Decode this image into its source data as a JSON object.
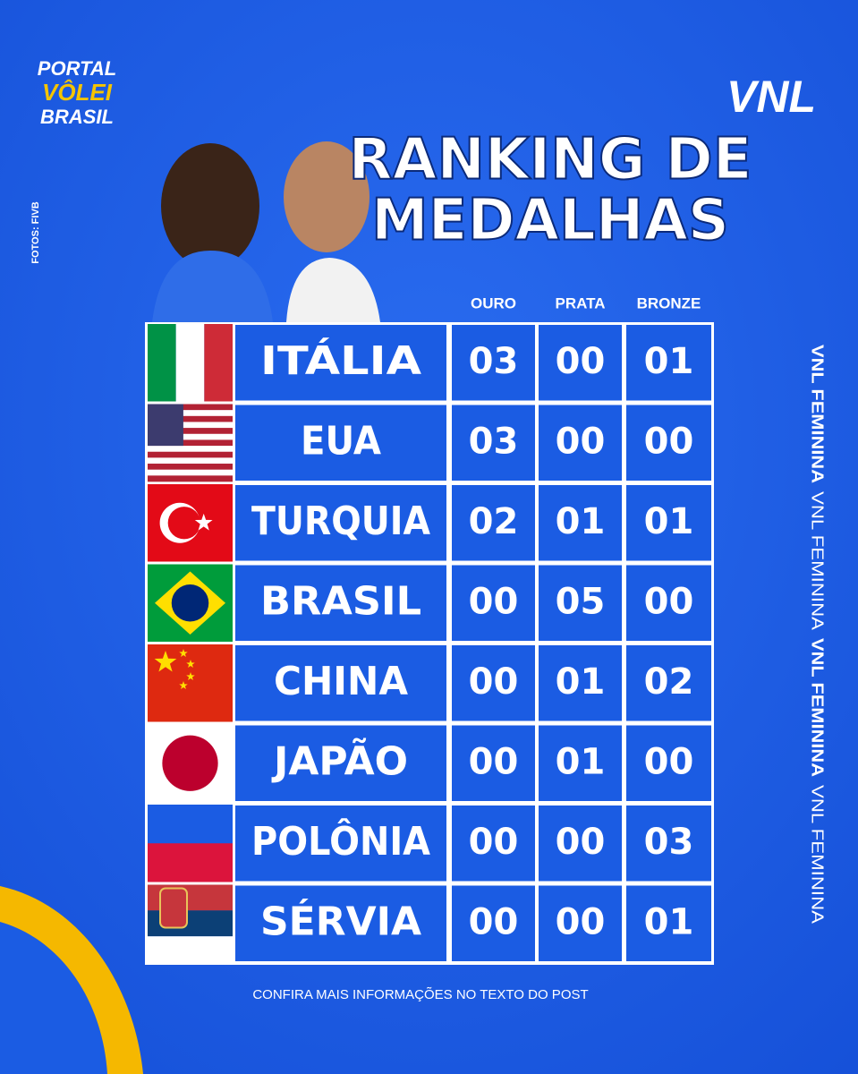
{
  "header": {
    "logo": [
      "PORTAL",
      "VÔLEI",
      "BRASIL"
    ],
    "credit": "FOTOS: FIVB",
    "brand": "VNL",
    "title": [
      "RANKING DE",
      "MEDALHAS"
    ]
  },
  "table": {
    "columns": [
      "OURO",
      "PRATA",
      "BRONZE"
    ],
    "rows": [
      [
        "ITÁLIA",
        "03",
        "00",
        "01"
      ],
      [
        "EUA",
        "03",
        "00",
        "00"
      ],
      [
        "TURQUIA",
        "02",
        "01",
        "01"
      ],
      [
        "BRASIL",
        "00",
        "05",
        "00"
      ],
      [
        "CHINA",
        "00",
        "01",
        "02"
      ],
      [
        "JAPÃO",
        "00",
        "01",
        "00"
      ],
      [
        "POLÔNIA",
        "00",
        "00",
        "03"
      ],
      [
        "SÉRVIA",
        "00",
        "00",
        "01"
      ]
    ]
  },
  "side_text": [
    "VNL FEMININA",
    "VNL FEMININA",
    "VNL FEMININA",
    "VNL FEMININA"
  ],
  "footer": "CONFIRA MAIS INFORMAÇÕES NO TEXTO DO POST"
}
